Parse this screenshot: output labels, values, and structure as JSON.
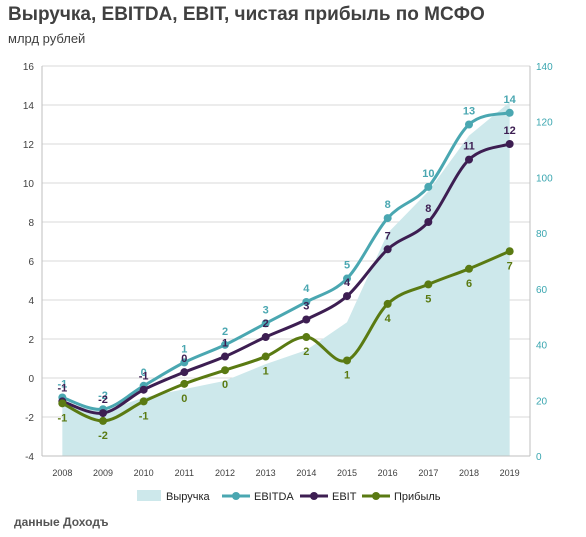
{
  "header": {
    "title": "Выручка, EBITDA, EBIT, чистая прибыль по МСФО",
    "subtitle": "млрд рублей",
    "source": "данные Доходъ"
  },
  "colors": {
    "revenue": "#cde8eb",
    "ebitda": "#4aa7b1",
    "ebit": "#3d1e52",
    "profit": "#5a7a12",
    "ebitda_label": "#4aa7b1",
    "ebit_label": "#3d1e52",
    "profit_label": "#5a7a12",
    "grid": "#d9d9d9",
    "axis_right": "#3aa6b0"
  },
  "chart_data": {
    "type": "line",
    "x": [
      "2008",
      "2009",
      "2010",
      "2011",
      "2012",
      "2013",
      "2014",
      "2015",
      "2016",
      "2017",
      "2018",
      "2019"
    ],
    "ylim_left": [
      -4,
      16
    ],
    "yticks_left": [
      -4,
      -2,
      0,
      2,
      4,
      6,
      8,
      10,
      12,
      14,
      16
    ],
    "ylim_right": [
      0,
      140
    ],
    "yticks_right": [
      0,
      20,
      40,
      60,
      80,
      100,
      120,
      140
    ],
    "grid": true,
    "legend_position": "bottom",
    "series": [
      {
        "name": "Выручка",
        "type": "area",
        "axis": "right",
        "values": [
          19,
          16,
          21,
          24,
          27,
          33,
          38,
          48,
          80,
          95,
          115,
          127
        ]
      },
      {
        "name": "EBITDA",
        "type": "line",
        "axis": "left",
        "values": [
          -1.0,
          -1.6,
          -0.4,
          0.8,
          1.7,
          2.8,
          3.9,
          5.1,
          8.2,
          9.8,
          13.0,
          13.6
        ],
        "labels": [
          "-1",
          "-2",
          "0",
          "1",
          "2",
          "3",
          "4",
          "5",
          "8",
          "10",
          "13",
          "14"
        ]
      },
      {
        "name": "EBIT",
        "type": "line",
        "axis": "left",
        "values": [
          -1.2,
          -1.8,
          -0.6,
          0.3,
          1.1,
          2.1,
          3.0,
          4.2,
          6.6,
          8.0,
          11.2,
          12.0
        ],
        "labels": [
          "-1",
          "-2",
          "-1",
          "0",
          "1",
          "2",
          "3",
          "4",
          "7",
          "8",
          "11",
          "12"
        ]
      },
      {
        "name": "Прибыль",
        "type": "line",
        "axis": "left",
        "values": [
          -1.3,
          -2.2,
          -1.2,
          -0.3,
          0.4,
          1.1,
          2.1,
          0.9,
          3.8,
          4.8,
          5.6,
          6.5
        ],
        "labels": [
          "-1",
          "-2",
          "-1",
          "0",
          "0",
          "1",
          "2",
          "1",
          "4",
          "5",
          "6",
          "7"
        ]
      }
    ]
  }
}
